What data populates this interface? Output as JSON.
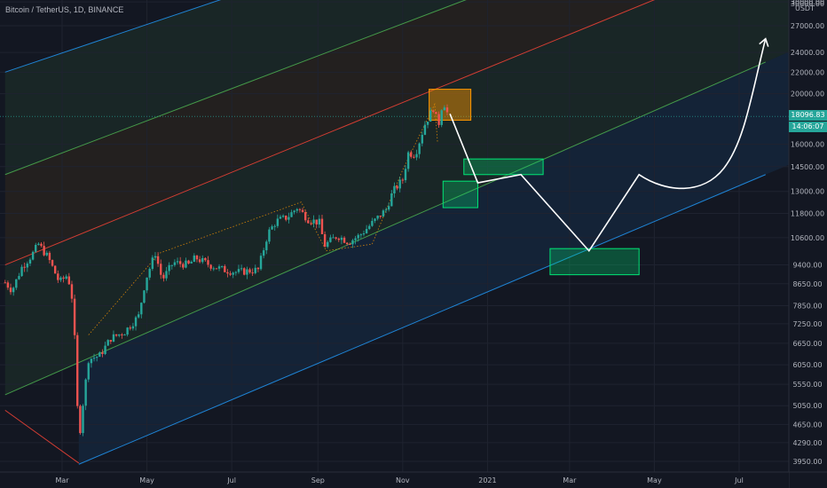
{
  "header": {
    "symbol_line": "Bitcoin / TetherUS, 1D, BINANCE"
  },
  "price_axis": {
    "currency_label": "USDT"
  },
  "current": {
    "price_label": "18096.83",
    "countdown_label": "14:06:07",
    "price": 18096.83
  },
  "colors": {
    "background": "#131722",
    "bull": "#26a69a",
    "bear": "#ef5350",
    "channel_green": "#4caf50",
    "channel_red": "#f44336",
    "channel_blue": "#2196f3",
    "zone_green": "#00e676",
    "zone_orange": "#ff9800",
    "projection": "#ffffff"
  },
  "chart_data": {
    "type": "candlestick",
    "symbol": "BTCUSDT",
    "exchange": "BINANCE",
    "timeframe": "1D",
    "scale": "log",
    "y_ticks": [
      30000,
      27000,
      24000,
      22000,
      20000,
      18096.83,
      16000,
      14500,
      13000,
      11800,
      10600,
      9400,
      8650,
      7850,
      7250,
      6650,
      6050,
      5550,
      5050,
      4650,
      4290,
      3950
    ],
    "y_tick_labels": [
      "30000.00",
      "27000.00",
      "24000.00",
      "22000.00",
      "20000.00",
      "",
      "16000.00",
      "14500.00",
      "13000.00",
      "11800.00",
      "10600.00",
      "9400.00",
      "8650.00",
      "7850.00",
      "7250.00",
      "6650.00",
      "6050.00",
      "5550.00",
      "5050.00",
      "4650.00",
      "4290.00",
      "3950.00"
    ],
    "x_ticks": [
      "Mar",
      "May",
      "Jul",
      "Sep",
      "Nov",
      "2021",
      "Mar",
      "May",
      "Jul"
    ],
    "x_tick_dates": [
      "2020-03-01",
      "2020-05-01",
      "2020-07-01",
      "2020-09-01",
      "2020-11-01",
      "2021-01-01",
      "2021-03-01",
      "2021-05-01",
      "2021-07-01"
    ],
    "price_path": [
      [
        "2020-01-20",
        8700
      ],
      [
        "2020-01-25",
        8400
      ],
      [
        "2020-02-01",
        9300
      ],
      [
        "2020-02-08",
        9800
      ],
      [
        "2020-02-13",
        10300
      ],
      [
        "2020-02-20",
        9700
      ],
      [
        "2020-02-28",
        8700
      ],
      [
        "2020-03-05",
        9000
      ],
      [
        "2020-03-09",
        7900
      ],
      [
        "2020-03-12",
        5000
      ],
      [
        "2020-03-13",
        4300
      ],
      [
        "2020-03-16",
        5100
      ],
      [
        "2020-03-20",
        6200
      ],
      [
        "2020-03-28",
        6300
      ],
      [
        "2020-04-05",
        6800
      ],
      [
        "2020-04-15",
        7000
      ],
      [
        "2020-04-25",
        7500
      ],
      [
        "2020-04-30",
        8800
      ],
      [
        "2020-05-07",
        9900
      ],
      [
        "2020-05-12",
        8800
      ],
      [
        "2020-05-20",
        9500
      ],
      [
        "2020-05-31",
        9400
      ],
      [
        "2020-06-05",
        9700
      ],
      [
        "2020-06-15",
        9400
      ],
      [
        "2020-06-25",
        9200
      ],
      [
        "2020-07-05",
        9100
      ],
      [
        "2020-07-20",
        9200
      ],
      [
        "2020-07-27",
        10800
      ],
      [
        "2020-08-02",
        11400
      ],
      [
        "2020-08-10",
        11600
      ],
      [
        "2020-08-17",
        12100
      ],
      [
        "2020-08-25",
        11500
      ],
      [
        "2020-09-03",
        11300
      ],
      [
        "2020-09-05",
        10200
      ],
      [
        "2020-09-15",
        10700
      ],
      [
        "2020-09-23",
        10400
      ],
      [
        "2020-10-01",
        10700
      ],
      [
        "2020-10-10",
        11300
      ],
      [
        "2020-10-20",
        12000
      ],
      [
        "2020-10-25",
        13000
      ],
      [
        "2020-11-01",
        13700
      ],
      [
        "2020-11-05",
        15400
      ],
      [
        "2020-11-10",
        15300
      ],
      [
        "2020-11-17",
        17500
      ],
      [
        "2020-11-24",
        19000
      ],
      [
        "2020-11-26",
        17000
      ],
      [
        "2020-11-30",
        19500
      ],
      [
        "2020-12-02",
        18700
      ],
      [
        "2020-12-04",
        18096.83
      ]
    ],
    "channel_lines": [
      {
        "color": "#2196f3",
        "p1": [
          "2020-03-13",
          3900
        ],
        "p2": [
          "2021-07-20",
          14000
        ]
      },
      {
        "color": "#4caf50",
        "p1": [
          "2020-01-20",
          5300
        ],
        "p2": [
          "2021-07-20",
          23000
        ]
      },
      {
        "color": "#f44336",
        "p1": [
          "2020-01-20",
          9400
        ],
        "p2": [
          "2021-07-20",
          37000
        ]
      },
      {
        "color": "#4caf50",
        "p1": [
          "2020-01-20",
          14000
        ],
        "p2": [
          "2021-07-20",
          50000
        ]
      },
      {
        "color": "#2196f3",
        "p1": [
          "2020-01-20",
          22000
        ],
        "p2": [
          "2021-07-20",
          68000
        ]
      },
      {
        "color": "#f44336",
        "p1": [
          "2020-01-20",
          4950
        ],
        "p2": [
          "2020-03-13",
          3920
        ]
      }
    ],
    "zones": [
      {
        "color": "#ff9800",
        "from": "2020-11-20",
        "to": "2020-12-20",
        "low": 17800,
        "high": 20400
      },
      {
        "color": "#00e676",
        "from": "2020-12-15",
        "to": "2021-02-10",
        "low": 14000,
        "high": 15000
      },
      {
        "color": "#00e676",
        "from": "2020-11-30",
        "to": "2020-12-25",
        "low": 12100,
        "high": 13600
      },
      {
        "color": "#00e676",
        "from": "2021-02-15",
        "to": "2021-04-20",
        "low": 9000,
        "high": 10100
      }
    ],
    "projection": [
      [
        "2020-12-05",
        18300
      ],
      [
        "2020-12-25",
        13500
      ],
      [
        "2021-01-25",
        14000
      ],
      [
        "2021-03-15",
        10000
      ],
      [
        "2021-04-20",
        14000
      ],
      [
        "2021-05-10",
        12900
      ],
      [
        "2021-06-05",
        12800
      ],
      [
        "2021-06-20",
        14400
      ],
      [
        "2021-07-10",
        20000
      ],
      [
        "2021-07-20",
        25500
      ]
    ],
    "pattern_outline": [
      [
        "2020-03-20",
        6900
      ],
      [
        "2020-05-10",
        9900
      ],
      [
        "2020-08-20",
        12400
      ],
      [
        "2020-09-07",
        10000
      ],
      [
        "2020-10-10",
        10300
      ],
      [
        "2020-11-01",
        14300
      ],
      [
        "2020-11-24",
        19100
      ],
      [
        "2020-11-26",
        16200
      ]
    ],
    "dotted_level": 18096.83
  }
}
